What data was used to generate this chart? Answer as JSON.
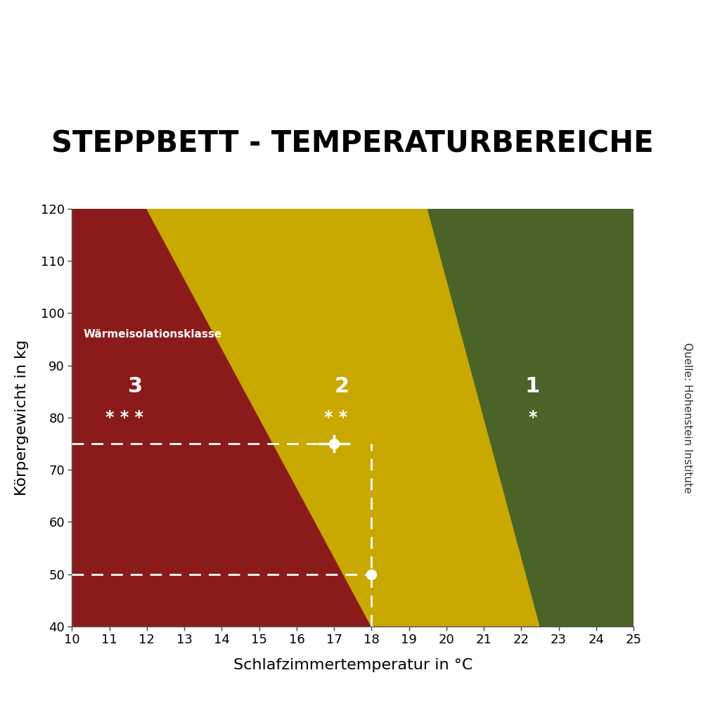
{
  "title": "STEPPBETT - TEMPERATURBEREICHE",
  "xlabel": "Schlafzimmertemperatur in °C",
  "ylabel": "Körpergewicht in kg",
  "source_label": "Quelle: Hohenstein Institute",
  "xlim": [
    10,
    25
  ],
  "ylim": [
    40,
    120
  ],
  "xticks": [
    10,
    11,
    12,
    13,
    14,
    15,
    16,
    17,
    18,
    19,
    20,
    21,
    22,
    23,
    24,
    25
  ],
  "yticks": [
    40,
    50,
    60,
    70,
    80,
    90,
    100,
    110,
    120
  ],
  "color_red": "#8B1A1A",
  "color_yellow": "#C9A800",
  "color_green": "#4A6428",
  "title_fontsize": 30,
  "axis_label_fontsize": 16,
  "tick_fontsize": 13,
  "class_label": "Wärmeisolationsklasse",
  "class3_x": 11.7,
  "class3_y_num": 86,
  "class3_y_stars": 80,
  "class2_x": 17.2,
  "class2_y_num": 86,
  "class2_y_stars": 80,
  "class1_x": 22.3,
  "class1_y_num": 86,
  "class1_y_stars": 80,
  "marker1_x": 17.0,
  "marker1_y": 75,
  "marker2_x": 18.0,
  "marker2_y": 50,
  "dashed_y1": 75,
  "dashed_y2": 50,
  "dashed_x": 18.0,
  "border1_top_x": 12.0,
  "border1_bottom_x": 18.0,
  "border2_top_x": 19.5,
  "border2_bottom_x": 22.5,
  "background_color": "#f0eded"
}
